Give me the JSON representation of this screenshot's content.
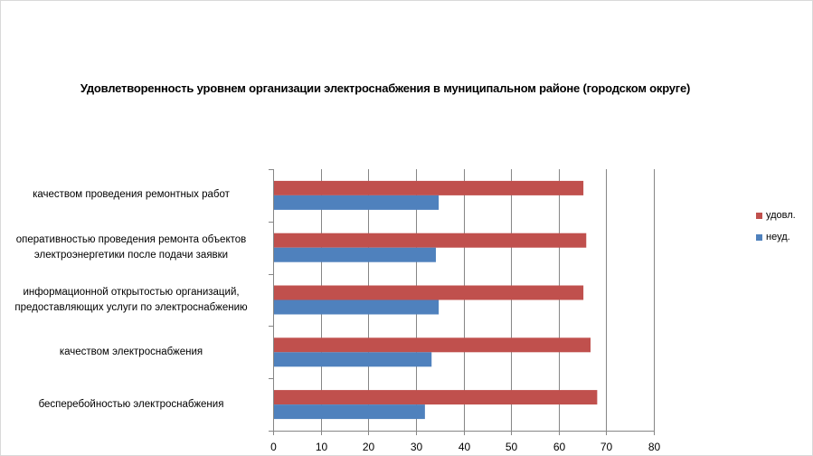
{
  "chart_data": {
    "type": "bar",
    "orientation": "horizontal",
    "title": "Удовлетворенность уровнем организации электроснабжения в муниципальном районе (городском округе)",
    "categories": [
      "качеством проведения ремонтных работ",
      "оперативностью проведения ремонта объектов электроэнергетики после подачи заявки",
      "информационной открытостью организаций, предоставляющих услуги по электроснабжению",
      "качеством электроснабжения",
      "бесперебойностью электроснабжения"
    ],
    "category_lines": [
      [
        "качеством проведения ремонтных работ"
      ],
      [
        "оперативностью проведения ремонта объектов",
        "электроэнергетики после подачи заявки"
      ],
      [
        "информационной открытостью организаций,",
        "предоставляющих услуги по электроснабжению"
      ],
      [
        "качеством электроснабжения"
      ],
      [
        "бесперебойностью электроснабжения"
      ]
    ],
    "series": [
      {
        "name": "удовл.",
        "color": "#c0504d",
        "values": [
          65.2,
          65.8,
          65.2,
          66.7,
          68.1
        ]
      },
      {
        "name": "неуд.",
        "color": "#4f81bd",
        "values": [
          34.8,
          34.2,
          34.8,
          33.3,
          31.9
        ]
      }
    ],
    "xlim": [
      0,
      80
    ],
    "xticks": [
      0,
      10,
      20,
      30,
      40,
      50,
      60,
      70,
      80
    ],
    "grid": true,
    "legend": "right"
  }
}
